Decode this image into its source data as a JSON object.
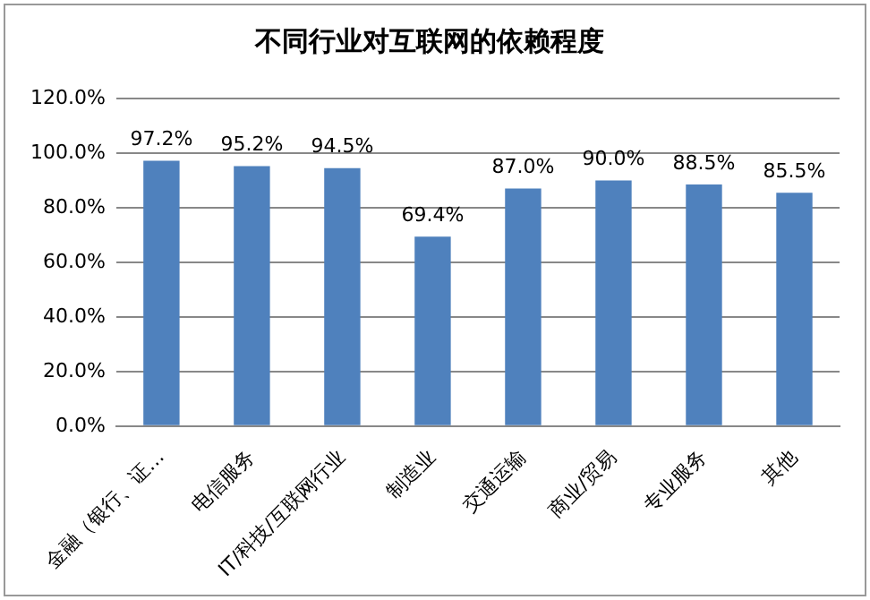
{
  "chart_data": {
    "type": "bar",
    "title": "不同行业对互联网的依赖程度",
    "categories": [
      "金融（银行、证…",
      "电信服务",
      "IT/科技/互联网行业",
      "制造业",
      "交通运输",
      "商业/贸易",
      "专业服务",
      "其他"
    ],
    "values": [
      97.2,
      95.2,
      94.5,
      69.4,
      87.0,
      90.0,
      88.5,
      85.5
    ],
    "value_labels": [
      "97.2%",
      "95.2%",
      "94.5%",
      "69.4%",
      "87.0%",
      "90.0%",
      "88.5%",
      "85.5%"
    ],
    "color": "#4f81bd",
    "ylim": [
      0,
      120
    ],
    "yticks": [
      {
        "value": 0,
        "label": "0.0%"
      },
      {
        "value": 20,
        "label": "20.0%"
      },
      {
        "value": 40,
        "label": "40.0%"
      },
      {
        "value": 60,
        "label": "60.0%"
      },
      {
        "value": 80,
        "label": "80.0%"
      },
      {
        "value": 100,
        "label": "100.0%"
      },
      {
        "value": 120,
        "label": "120.0%"
      }
    ],
    "grid": "y",
    "legend": false
  }
}
